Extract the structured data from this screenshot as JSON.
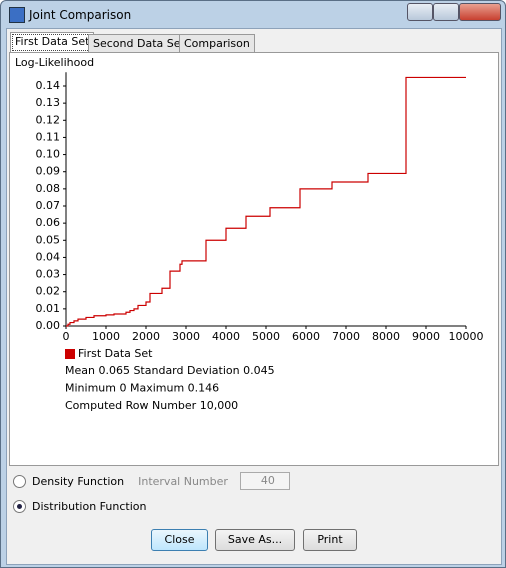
{
  "window": {
    "title": "Joint Comparison"
  },
  "tabs": [
    "First Data Set",
    "Second Data Set",
    "Comparison"
  ],
  "chart_data": {
    "type": "line",
    "step": "post",
    "y_label": "Log-Likelihood",
    "x": [
      0,
      50,
      100,
      200,
      300,
      500,
      700,
      1000,
      1200,
      1500,
      1600,
      1700,
      1800,
      2000,
      2100,
      2400,
      2600,
      2850,
      2900,
      3500,
      4000,
      4500,
      5100,
      5850,
      6650,
      7550,
      8500,
      10000
    ],
    "series": [
      {
        "name": "First Data Set",
        "color": "#cc0000",
        "values": [
          0,
          0.001,
          0.002,
          0.003,
          0.004,
          0.005,
          0.006,
          0.0065,
          0.007,
          0.008,
          0.009,
          0.01,
          0.012,
          0.014,
          0.019,
          0.022,
          0.032,
          0.036,
          0.038,
          0.05,
          0.057,
          0.064,
          0.069,
          0.08,
          0.084,
          0.089,
          0.145,
          0.145
        ]
      }
    ],
    "xlim": [
      0,
      10000
    ],
    "xticks": [
      0,
      1000,
      2000,
      3000,
      4000,
      5000,
      6000,
      7000,
      8000,
      9000,
      10000
    ],
    "ylim": [
      0,
      0.148
    ],
    "yticks": [
      {
        "value": 0,
        "label": "0.00"
      },
      0.01,
      0.02,
      0.03,
      0.04,
      0.05,
      0.06,
      0.07,
      0.08,
      0.09,
      {
        "value": 0.1,
        "label": "0.10"
      },
      0.11,
      0.12,
      0.13,
      0.14
    ],
    "legend": "bottom-left"
  },
  "stats": [
    "Mean 0.065 Standard Deviation 0.045",
    "Minimum 0 Maximum 0.146",
    "Computed Row Number 10,000"
  ],
  "options": {
    "density": "Density Function",
    "interval_label": "Interval Number",
    "interval_value": 40,
    "distribution": "Distribution Function"
  },
  "buttons": [
    "Close",
    "Save As...",
    "Print"
  ]
}
